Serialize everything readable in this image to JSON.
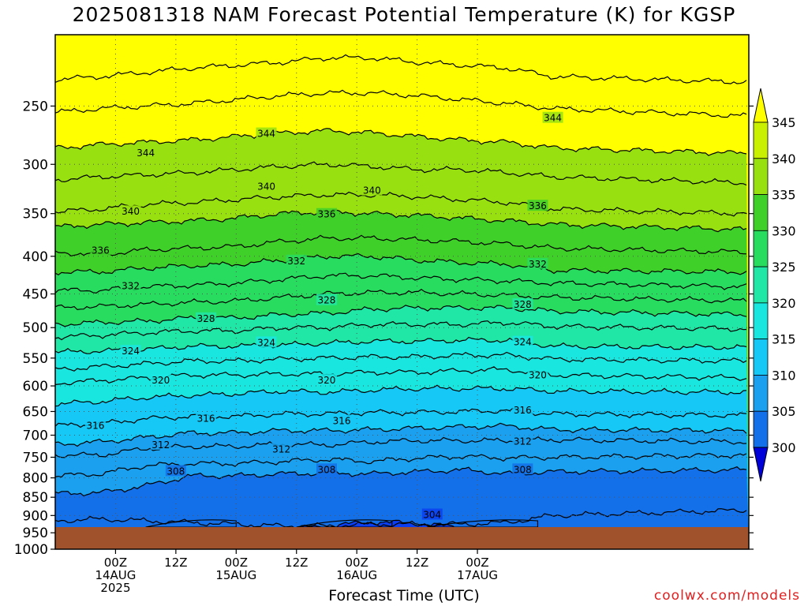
{
  "title": "2025081318 NAM Forecast Potential Temperature (K) for KGSP",
  "credit": "coolwx.com/models",
  "chart_data": {
    "type": "heatmap",
    "title": "2025081318 NAM Forecast Potential Temperature (K) for KGSP",
    "xlabel": "Forecast Time (UTC)",
    "ylabel": "",
    "y_scale": "log-pressure",
    "y_reversed": true,
    "ylim_hPa": [
      1000,
      200
    ],
    "y_ticks": [
      250,
      300,
      350,
      400,
      450,
      500,
      550,
      600,
      650,
      700,
      750,
      800,
      850,
      900,
      950,
      1000
    ],
    "x_range_hours": [
      -12,
      126
    ],
    "x_ticks": [
      {
        "hours": 0,
        "lines": [
          "00Z",
          "14AUG",
          "2025"
        ]
      },
      {
        "hours": 12,
        "lines": [
          "12Z"
        ]
      },
      {
        "hours": 24,
        "lines": [
          "00Z",
          "15AUG"
        ]
      },
      {
        "hours": 36,
        "lines": [
          "12Z"
        ]
      },
      {
        "hours": 48,
        "lines": [
          "00Z",
          "16AUG"
        ]
      },
      {
        "hours": 60,
        "lines": [
          "12Z"
        ]
      },
      {
        "hours": 72,
        "lines": [
          "00Z",
          "17AUG"
        ]
      }
    ],
    "x_note": "hours measured from 14AUG 00Z; run start 2025081318",
    "grid": true,
    "colorbar": {
      "levels": [
        300,
        305,
        310,
        315,
        320,
        325,
        330,
        335,
        340,
        345
      ],
      "colors": [
        "#0000d8",
        "#0a3ef0",
        "#1470e8",
        "#1aa0ef",
        "#16c8f5",
        "#1ae6e0",
        "#20e6a6",
        "#28dc60",
        "#40d02a",
        "#98e010",
        "#c8f000",
        "#ffff00"
      ],
      "placement": "right"
    },
    "contour_interval": 4,
    "series": [
      {
        "theta": 304,
        "p_hPa": [
          968,
          965,
          965,
          960,
          955,
          940,
          930,
          918,
          922,
          935,
          950,
          962,
          968
        ]
      },
      {
        "theta": 306,
        "p_hPa": [
          915,
          910,
          915,
          920,
          925,
          930,
          930,
          925,
          925,
          925,
          920,
          900,
          885
        ]
      },
      {
        "theta": 308,
        "p_hPa": [
          840,
          838,
          820,
          795,
          795,
          790,
          788,
          790,
          785,
          780,
          790,
          785,
          780
        ]
      },
      {
        "theta": 310,
        "p_hPa": [
          795,
          790,
          770,
          765,
          765,
          760,
          755,
          760,
          752,
          748,
          752,
          750,
          745
        ]
      },
      {
        "theta": 312,
        "p_hPa": [
          745,
          745,
          730,
          725,
          725,
          720,
          722,
          715,
          712,
          712,
          712,
          710,
          715
        ]
      },
      {
        "theta": 314,
        "p_hPa": [
          720,
          715,
          705,
          695,
          695,
          690,
          690,
          688,
          685,
          682,
          680,
          688,
          690
        ]
      },
      {
        "theta": 316,
        "p_hPa": [
          680,
          675,
          665,
          660,
          660,
          655,
          655,
          652,
          652,
          650,
          648,
          655,
          658
        ]
      },
      {
        "theta": 318,
        "p_hPa": [
          635,
          630,
          622,
          618,
          615,
          610,
          612,
          608,
          605,
          605,
          605,
          610,
          612
        ]
      },
      {
        "theta": 320,
        "p_hPa": [
          595,
          590,
          585,
          580,
          580,
          578,
          578,
          575,
          575,
          572,
          570,
          580,
          585
        ]
      },
      {
        "theta": 322,
        "p_hPa": [
          570,
          565,
          560,
          555,
          555,
          552,
          550,
          548,
          548,
          545,
          545,
          552,
          555
        ]
      },
      {
        "theta": 324,
        "p_hPa": [
          540,
          538,
          535,
          530,
          530,
          528,
          525,
          522,
          522,
          520,
          520,
          530,
          532
        ]
      },
      {
        "theta": 326,
        "p_hPa": [
          515,
          512,
          508,
          505,
          505,
          500,
          500,
          495,
          495,
          495,
          492,
          498,
          502
        ]
      },
      {
        "theta": 328,
        "p_hPa": [
          495,
          492,
          490,
          485,
          485,
          480,
          478,
          472,
          470,
          470,
          470,
          475,
          480
        ]
      },
      {
        "theta": 330,
        "p_hPa": [
          470,
          468,
          465,
          462,
          460,
          455,
          450,
          448,
          448,
          450,
          452,
          455,
          460
        ]
      },
      {
        "theta": 332,
        "p_hPa": [
          445,
          445,
          440,
          438,
          435,
          430,
          425,
          425,
          428,
          430,
          432,
          435,
          440
        ]
      },
      {
        "theta": 334,
        "p_hPa": [
          420,
          420,
          415,
          412,
          410,
          405,
          400,
          400,
          405,
          408,
          410,
          418,
          420
        ]
      },
      {
        "theta": 336,
        "p_hPa": [
          395,
          398,
          392,
          390,
          388,
          382,
          378,
          378,
          380,
          382,
          385,
          390,
          395
        ]
      },
      {
        "theta": 338,
        "p_hPa": [
          365,
          362,
          360,
          358,
          355,
          350,
          348,
          350,
          352,
          355,
          358,
          362,
          368
        ]
      },
      {
        "theta": 340,
        "p_hPa": [
          348,
          345,
          340,
          338,
          335,
          332,
          330,
          330,
          332,
          335,
          338,
          345,
          350
        ]
      },
      {
        "theta": 342,
        "p_hPa": [
          315,
          312,
          310,
          308,
          305,
          302,
          300,
          302,
          305,
          305,
          308,
          312,
          318
        ]
      },
      {
        "theta": 344,
        "p_hPa": [
          285,
          282,
          280,
          278,
          275,
          272,
          270,
          272,
          275,
          278,
          280,
          285,
          290
        ]
      },
      {
        "theta": 346,
        "p_hPa": [
          255,
          252,
          250,
          248,
          245,
          242,
          240,
          240,
          242,
          245,
          248,
          252,
          258
        ]
      },
      {
        "theta": 348,
        "p_hPa": [
          230,
          228,
          225,
          222,
          220,
          218,
          215,
          215,
          218,
          220,
          222,
          228,
          232
        ]
      }
    ],
    "series_hours": [
      -12,
      -3,
      6,
      15,
      24,
      33,
      42,
      51,
      60,
      69,
      78,
      87,
      126
    ],
    "contour_labels": [
      {
        "text": "344",
        "hours": 6,
        "p_hPa": 289
      },
      {
        "text": "344",
        "hours": 30,
        "p_hPa": 272
      },
      {
        "text": "344",
        "hours": 87,
        "p_hPa": 259
      },
      {
        "text": "340",
        "hours": 3,
        "p_hPa": 347
      },
      {
        "text": "340",
        "hours": 30,
        "p_hPa": 321
      },
      {
        "text": "340",
        "hours": 51,
        "p_hPa": 325
      },
      {
        "text": "336",
        "hours": -3,
        "p_hPa": 392
      },
      {
        "text": "336",
        "hours": 42,
        "p_hPa": 350
      },
      {
        "text": "336",
        "hours": 84,
        "p_hPa": 341
      },
      {
        "text": "332",
        "hours": 3,
        "p_hPa": 438
      },
      {
        "text": "332",
        "hours": 36,
        "p_hPa": 405
      },
      {
        "text": "332",
        "hours": 84,
        "p_hPa": 409
      },
      {
        "text": "328",
        "hours": 18,
        "p_hPa": 485
      },
      {
        "text": "328",
        "hours": 42,
        "p_hPa": 458
      },
      {
        "text": "328",
        "hours": 81,
        "p_hPa": 464
      },
      {
        "text": "324",
        "hours": 3,
        "p_hPa": 537
      },
      {
        "text": "324",
        "hours": 30,
        "p_hPa": 523
      },
      {
        "text": "324",
        "hours": 81,
        "p_hPa": 522
      },
      {
        "text": "320",
        "hours": 9,
        "p_hPa": 588
      },
      {
        "text": "320",
        "hours": 42,
        "p_hPa": 588
      },
      {
        "text": "320",
        "hours": 84,
        "p_hPa": 579
      },
      {
        "text": "316",
        "hours": -4,
        "p_hPa": 678
      },
      {
        "text": "316",
        "hours": 18,
        "p_hPa": 663
      },
      {
        "text": "316",
        "hours": 45,
        "p_hPa": 668
      },
      {
        "text": "316",
        "hours": 81,
        "p_hPa": 646
      },
      {
        "text": "312",
        "hours": 9,
        "p_hPa": 720
      },
      {
        "text": "312",
        "hours": 33,
        "p_hPa": 730
      },
      {
        "text": "312",
        "hours": 81,
        "p_hPa": 712
      },
      {
        "text": "308",
        "hours": 12,
        "p_hPa": 782
      },
      {
        "text": "308",
        "hours": 42,
        "p_hPa": 778
      },
      {
        "text": "308",
        "hours": 81,
        "p_hPa": 778
      },
      {
        "text": "304",
        "hours": 63,
        "p_hPa": 896
      }
    ],
    "ground_color": "#a0522d"
  }
}
